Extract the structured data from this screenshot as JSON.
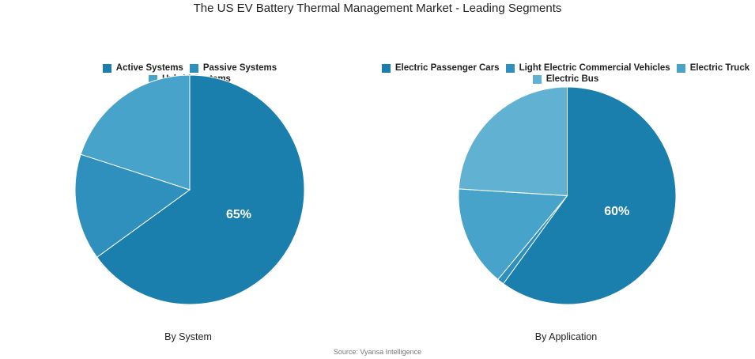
{
  "title": "The US EV Battery Thermal Management Market - Leading Segments",
  "source": "Source: Vyansa Intelligence",
  "colors": {
    "blue_dark": "#1b7fae",
    "blue_mid": "#2f8fbd",
    "blue_light": "#47a3c9",
    "blue_pale": "#61b1d2"
  },
  "chart_data": [
    {
      "type": "pie",
      "title": "By System",
      "categories": [
        "Active Systems",
        "Passive Systems",
        "Hybrid Systems"
      ],
      "values": [
        65,
        15,
        20
      ],
      "data_labels": [
        "65%",
        "",
        ""
      ],
      "colors": [
        "#1b7fae",
        "#2f8fbd",
        "#47a3c9"
      ],
      "legend_position": "top"
    },
    {
      "type": "pie",
      "title": "By Application",
      "categories": [
        "Electric Passenger Cars",
        "Light Electric Commercial Vehicles",
        "Electric Truck",
        "Electric Bus"
      ],
      "values": [
        60,
        1,
        15,
        24
      ],
      "data_labels": [
        "60%",
        "",
        "",
        ""
      ],
      "colors": [
        "#1b7fae",
        "#2f8fbd",
        "#47a3c9",
        "#61b1d2"
      ],
      "legend_position": "top"
    }
  ]
}
